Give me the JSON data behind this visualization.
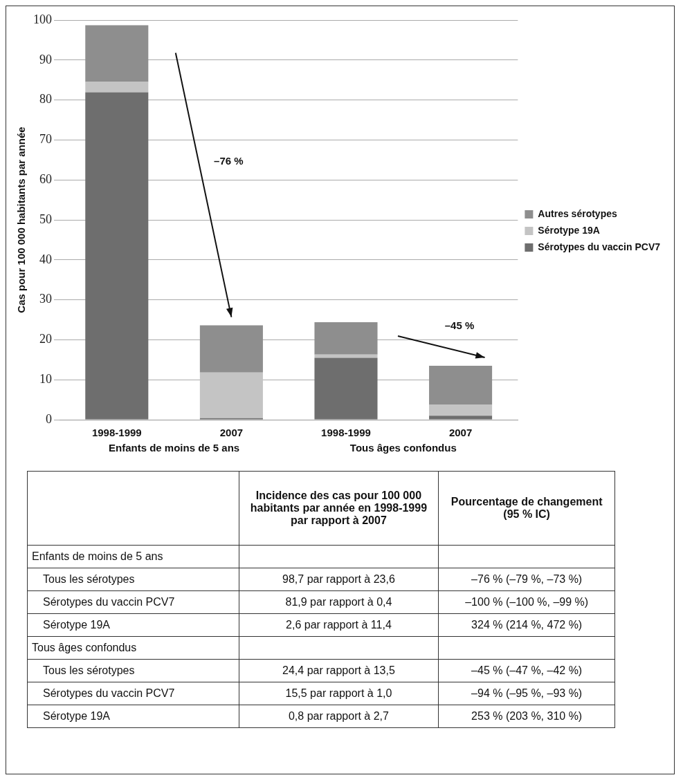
{
  "chart_data": {
    "type": "bar",
    "stacked": true,
    "ylabel": "Cas pour 100 000 habitants par année",
    "categories": [
      "1998-1999",
      "2007",
      "1998-1999",
      "2007"
    ],
    "series": [
      {
        "name": "Sérotypes du vaccin PCV7",
        "color": "#6e6e6e",
        "values": [
          81.9,
          0.4,
          15.5,
          1.0
        ]
      },
      {
        "name": "Sérotype 19A",
        "color": "#c4c4c4",
        "values": [
          2.6,
          11.4,
          0.8,
          2.7
        ]
      },
      {
        "name": "Autres sérotypes",
        "color": "#8e8e8e",
        "values": [
          14.2,
          11.8,
          8.1,
          9.8
        ]
      }
    ],
    "ylim": [
      0,
      100
    ],
    "yticks": [
      0,
      10,
      20,
      30,
      40,
      50,
      60,
      70,
      80,
      90,
      100
    ],
    "grid": "y",
    "legend": "right",
    "annotations": [
      "–76 %",
      "–45 %",
      "Enfants de moins de 5 ans",
      "Tous âges confondus",
      "Incidence des cas pour 100 000 habitants par année en 1998-1999 par rapport à 2007",
      "Pourcentage de changement (95 % IC)",
      "Enfants de moins de 5 ans",
      "Tous les sérotypes",
      "98,7 par rapport à 23,6",
      "–76 % (–79 %, –73 %)",
      "Sérotypes du vaccin PCV7",
      "81,9 par rapport à 0,4",
      "–100 % (–100 %, –99 %)",
      "Sérotype 19A",
      "2,6 par rapport à 11,4",
      "324 % (214 %, 472 %)",
      "Tous âges confondus",
      "Tous les sérotypes",
      "24,4 par rapport à 13,5",
      "–45 % (–47 %, –42 %)",
      "Sérotypes du vaccin PCV7",
      "15,5 par rapport à 1,0",
      "–94 % (–95 %, –93 %)",
      "Sérotype 19A",
      "0,8 par rapport à 2,7",
      "253 % (203 %, 310 %)"
    ]
  }
}
